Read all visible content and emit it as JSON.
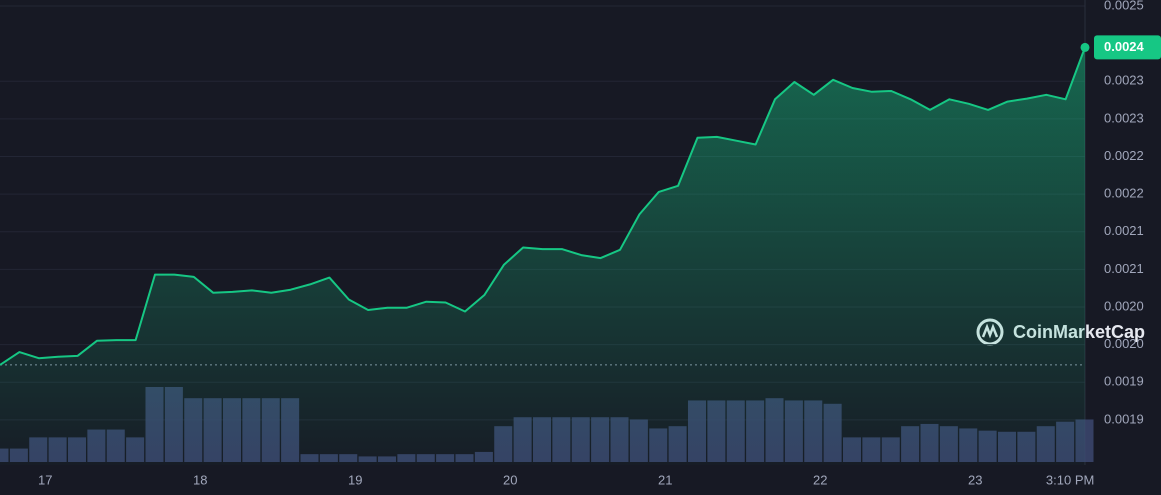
{
  "chart_data": {
    "type": "line",
    "x": [
      -7,
      -4,
      -1,
      2,
      5,
      8,
      11,
      14,
      17,
      20,
      23,
      26,
      29,
      32,
      35,
      38,
      41,
      44,
      47,
      50,
      53,
      56,
      59,
      62,
      65,
      68,
      71,
      74,
      77,
      80,
      83,
      86,
      89,
      92,
      95,
      98,
      101,
      104,
      107,
      110,
      113,
      116,
      119,
      122,
      125,
      128,
      131,
      134,
      137,
      140,
      143,
      146,
      149,
      152,
      155,
      158,
      161
    ],
    "series": [
      {
        "color": "#16c784",
        "values": [
          0.001973,
          0.00199,
          0.001982,
          0.001984,
          0.001985,
          0.002005,
          0.002006,
          0.002006,
          0.002093,
          0.002093,
          0.00209,
          0.002069,
          0.00207,
          0.002072,
          0.002069,
          0.002073,
          0.00208,
          0.002089,
          0.00206,
          0.002046,
          0.002049,
          0.002049,
          0.002057,
          0.002056,
          0.002044,
          0.002066,
          0.002106,
          0.002129,
          0.002127,
          0.002127,
          0.002119,
          0.002115,
          0.002126,
          0.002173,
          0.002203,
          0.002211,
          0.002275,
          0.002276,
          0.002271,
          0.002266,
          0.002326,
          0.002349,
          0.002332,
          0.002352,
          0.002341,
          0.002336,
          0.002337,
          0.002326,
          0.002312,
          0.002326,
          0.00232,
          0.002312,
          0.002323,
          0.002327,
          0.002332,
          0.002326,
          0.002395
        ]
      }
    ],
    "volume": {
      "color": "#3c4870",
      "values": [
        12,
        12,
        22,
        22,
        22,
        29,
        29,
        22,
        67,
        67,
        57,
        57,
        57,
        57,
        57,
        57,
        7,
        7,
        7,
        5,
        5,
        7,
        7,
        7,
        7,
        9,
        32,
        40,
        40,
        40,
        40,
        40,
        40,
        38,
        30,
        32,
        55,
        55,
        55,
        55,
        57,
        55,
        55,
        52,
        22,
        22,
        22,
        32,
        34,
        32,
        30,
        28,
        27,
        27,
        32,
        36,
        38
      ]
    },
    "ylim": [
      0.00184,
      0.002458
    ],
    "yticks": [
      0.0019,
      {
        "value": 0.00195,
        "label": "0.0019"
      },
      {
        "value": 0.002,
        "label": "0.0020"
      },
      {
        "value": 0.00205,
        "label": "0.0020"
      },
      0.0021,
      {
        "value": 0.00215,
        "label": "0.0021"
      },
      0.0022,
      {
        "value": 0.00225,
        "label": "0.0022"
      },
      0.0023,
      {
        "value": 0.00235,
        "label": "0.0023"
      },
      {
        "value": 0.00245,
        "label": "0.0025"
      }
    ],
    "xlim": [
      -7,
      161
    ],
    "xticks": [
      {
        "value": 0,
        "label": "17"
      },
      {
        "value": 24,
        "label": "18"
      },
      {
        "value": 48,
        "label": "19"
      },
      {
        "value": 72,
        "label": "20"
      },
      {
        "value": 96,
        "label": "21"
      },
      {
        "value": 120,
        "label": "22"
      },
      {
        "value": 144,
        "label": "23"
      },
      {
        "value": 158.7,
        "label": "3:10 PM"
      }
    ],
    "reference": 0.001973,
    "last_price": {
      "value": 0.002395,
      "label": "0.0024"
    },
    "watermark": "CoinMarketCap",
    "grid": true
  }
}
